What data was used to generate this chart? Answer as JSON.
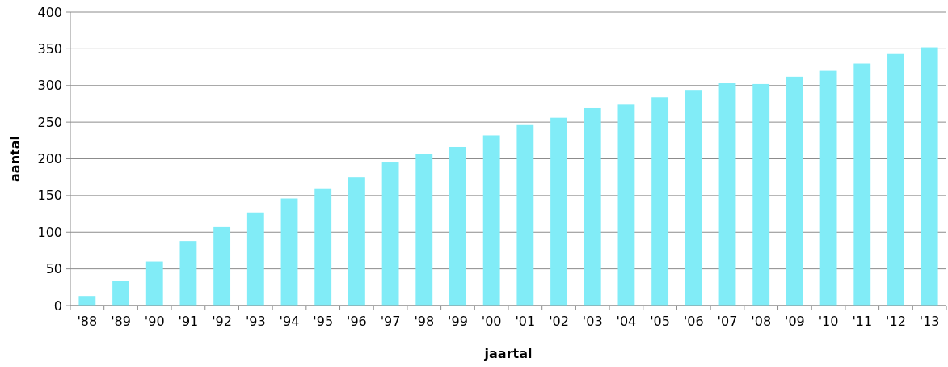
{
  "chart_data": {
    "type": "bar",
    "xlabel": "jaartal",
    "ylabel": "aantal",
    "categories": [
      "'88",
      "'89",
      "'90",
      "'91",
      "'92",
      "'93",
      "'94",
      "'95",
      "'96",
      "'97",
      "'98",
      "'99",
      "'00",
      "'01",
      "'02",
      "'03",
      "'04",
      "'05",
      "'06",
      "'07",
      "'08",
      "'09",
      "'10",
      "'11",
      "'12",
      "'13"
    ],
    "values": [
      13,
      34,
      60,
      88,
      107,
      127,
      146,
      159,
      175,
      195,
      207,
      216,
      232,
      246,
      256,
      270,
      274,
      284,
      294,
      303,
      302,
      312,
      320,
      330,
      343,
      352
    ],
    "color": "#81ecf7",
    "ylim": [
      0,
      400
    ],
    "yticks": [
      0,
      50,
      100,
      150,
      200,
      250,
      300,
      350,
      400
    ],
    "grid": "y"
  }
}
